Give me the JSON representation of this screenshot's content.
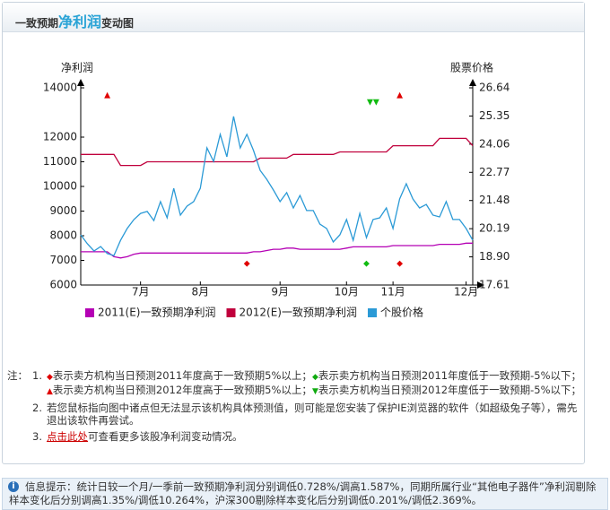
{
  "header": {
    "title_parts": [
      "一致预期",
      "净利润",
      "变动图"
    ]
  },
  "chart_data": {
    "type": "line",
    "ylabel": "净利润",
    "y2label": "股票价格",
    "ylim": [
      6000,
      14000
    ],
    "yticks": [
      14000,
      12000,
      11000,
      10000,
      9000,
      8000,
      7000,
      6000
    ],
    "y2lim": [
      17.61,
      26.64
    ],
    "y2ticks": [
      26.64,
      25.35,
      24.06,
      22.77,
      21.48,
      20.19,
      {
        "value": 18.9,
        "label": "18.90"
      },
      17.61
    ],
    "categories": [
      null,
      null,
      null,
      null,
      null,
      null,
      null,
      null,
      null,
      "7月",
      null,
      null,
      null,
      null,
      null,
      null,
      null,
      null,
      "8月",
      null,
      null,
      null,
      null,
      null,
      null,
      null,
      null,
      null,
      null,
      null,
      "9月",
      null,
      null,
      null,
      null,
      null,
      null,
      null,
      null,
      null,
      "10月",
      null,
      null,
      null,
      null,
      null,
      null,
      "11月",
      null,
      null,
      null,
      null,
      null,
      null,
      null,
      null,
      null,
      null,
      "12月",
      null
    ],
    "series": [
      {
        "name": "2011(E)一致预期净利润",
        "color": "#b400b4",
        "axis": "y",
        "values": [
          7350,
          7350,
          7350,
          7350,
          7350,
          7150,
          7100,
          7150,
          7250,
          7300,
          7300,
          7300,
          7300,
          7300,
          7300,
          7300,
          7300,
          7300,
          7300,
          7300,
          7300,
          7300,
          7300,
          7300,
          7300,
          7300,
          7350,
          7350,
          7400,
          7450,
          7450,
          7500,
          7500,
          7450,
          7450,
          7450,
          7450,
          7450,
          7450,
          7450,
          7500,
          7550,
          7550,
          7550,
          7550,
          7550,
          7550,
          7600,
          7600,
          7600,
          7600,
          7600,
          7600,
          7600,
          7650,
          7650,
          7650,
          7650,
          7700,
          7700
        ]
      },
      {
        "name": "2012(E)一致预期净利润",
        "color": "#c0003c",
        "axis": "y",
        "values": [
          11300,
          11300,
          11300,
          11300,
          11300,
          11300,
          10850,
          10850,
          10850,
          10850,
          11000,
          11000,
          11000,
          11000,
          11000,
          11000,
          11000,
          11000,
          11000,
          11000,
          11000,
          11000,
          11000,
          11000,
          11000,
          11000,
          11000,
          11150,
          11150,
          11150,
          11150,
          11150,
          11300,
          11300,
          11300,
          11300,
          11300,
          11300,
          11300,
          11400,
          11400,
          11400,
          11400,
          11400,
          11400,
          11400,
          11400,
          11650,
          11650,
          11650,
          11650,
          11650,
          11650,
          11650,
          11950,
          11950,
          11950,
          11950,
          11950,
          11650
        ]
      },
      {
        "name": "个股价格",
        "color": "#2b9ad6",
        "axis": "y2",
        "values": [
          19.91,
          19.5,
          19.17,
          19.37,
          19.05,
          18.96,
          19.66,
          20.2,
          20.61,
          20.89,
          20.98,
          20.56,
          21.43,
          20.69,
          22.04,
          20.81,
          21.22,
          21.43,
          22.04,
          23.89,
          23.27,
          24.51,
          23.48,
          25.33,
          23.89,
          24.51,
          23.77,
          22.86,
          22.45,
          21.96,
          21.43,
          21.84,
          21.14,
          21.71,
          21.02,
          21.02,
          20.4,
          20.2,
          19.58,
          19.91,
          20.61,
          19.66,
          20.89,
          19.78,
          20.61,
          20.69,
          21.14,
          20.2,
          21.55,
          22.25,
          21.55,
          21.14,
          21.3,
          20.81,
          20.73,
          21.43,
          20.61,
          20.61,
          20.2,
          19.66
        ]
      }
    ],
    "markers": [
      {
        "index": 4,
        "symbol": "▲",
        "color": "#e00000",
        "row": "top"
      },
      {
        "index": 48,
        "symbol": "▲",
        "color": "#e00000",
        "row": "top"
      },
      {
        "index": 44,
        "symbol": "▼▼",
        "color": "#11bb11",
        "row": "top"
      },
      {
        "index": 25,
        "symbol": "◆",
        "color": "#e00000",
        "row": "bottom"
      },
      {
        "index": 48,
        "symbol": "◆",
        "color": "#e00000",
        "row": "bottom"
      },
      {
        "index": 43,
        "symbol": "◆",
        "color": "#11bb11",
        "row": "bottom"
      }
    ],
    "legend": "bottom"
  },
  "notes": {
    "label": "注：",
    "items": [
      {
        "number": "1.",
        "lines": [
          [
            {
              "symbol": "◆",
              "color": "#e00000",
              "text": "表示卖方机构当日预测2011年度高于一致预期5%以上；"
            },
            {
              "symbol": "◆",
              "color": "#11aa11",
              "text": "表示卖方机构当日预测2011年度低于一致预期-5%以下；"
            }
          ],
          [
            {
              "symbol": "▲",
              "color": "#e00000",
              "text": "表示卖方机构当日预测2012年度高于一致预期5%以上；"
            },
            {
              "symbol": "▼",
              "color": "#11aa11",
              "text": "表示卖方机构当日预测2012年度低于一致预期-5%以下；"
            }
          ]
        ]
      },
      {
        "number": "2.",
        "text": "若您鼠标指向图中诸点但无法显示该机构具体预测值，则可能是您安装了保护IE浏览器的软件（如超级兔子等），需先退出该软件再尝试。"
      },
      {
        "number": "3.",
        "link": "点击此处",
        "text": "可查看更多该股净利润变动情况。"
      }
    ]
  },
  "info": {
    "icon": "i",
    "text": "信息提示：统计日较一个月/一季前一致预期净利润分别调低0.728%/调高1.587%，同期所属行业“其他电子器件”净利润剔除样本变化后分别调高1.35%/调低10.264%，沪深300剔除样本变化后分别调低0.201%/调低2.369%。"
  }
}
